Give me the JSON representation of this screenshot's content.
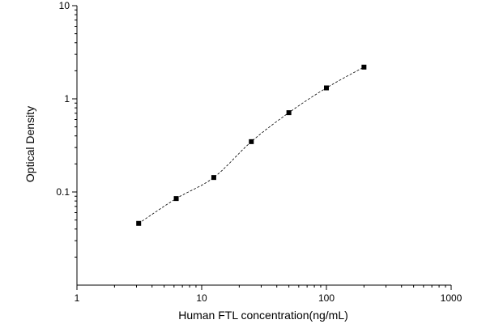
{
  "chart_data": {
    "type": "scatter",
    "title": "",
    "xlabel": "Human FTL concentration(ng/mL)",
    "ylabel": "Optical Density",
    "x_scale": "log",
    "y_scale": "log",
    "xlim": [
      1,
      1000
    ],
    "ylim": [
      0.01,
      10
    ],
    "x_ticks": [
      {
        "value": 1,
        "label": "1"
      },
      {
        "value": 10,
        "label": "10"
      },
      {
        "value": 100,
        "label": "100"
      },
      {
        "value": 1000,
        "label": "1000"
      }
    ],
    "y_ticks": [
      {
        "value": 0.1,
        "label": "0.1"
      },
      {
        "value": 1,
        "label": "1"
      },
      {
        "value": 10,
        "label": "10"
      }
    ],
    "grid": false,
    "legend": "none",
    "series": [
      {
        "points": [
          {
            "x": 3.125,
            "y": 0.046
          },
          {
            "x": 6.25,
            "y": 0.085
          },
          {
            "x": 12.5,
            "y": 0.143
          },
          {
            "x": 25,
            "y": 0.347
          },
          {
            "x": 50,
            "y": 0.71
          },
          {
            "x": 100,
            "y": 1.31
          },
          {
            "x": 200,
            "y": 2.19
          }
        ],
        "fit_curve": "dashed"
      }
    ],
    "colors": {
      "axis": "#000000",
      "marker": "#000000",
      "curve": "#000000"
    }
  }
}
